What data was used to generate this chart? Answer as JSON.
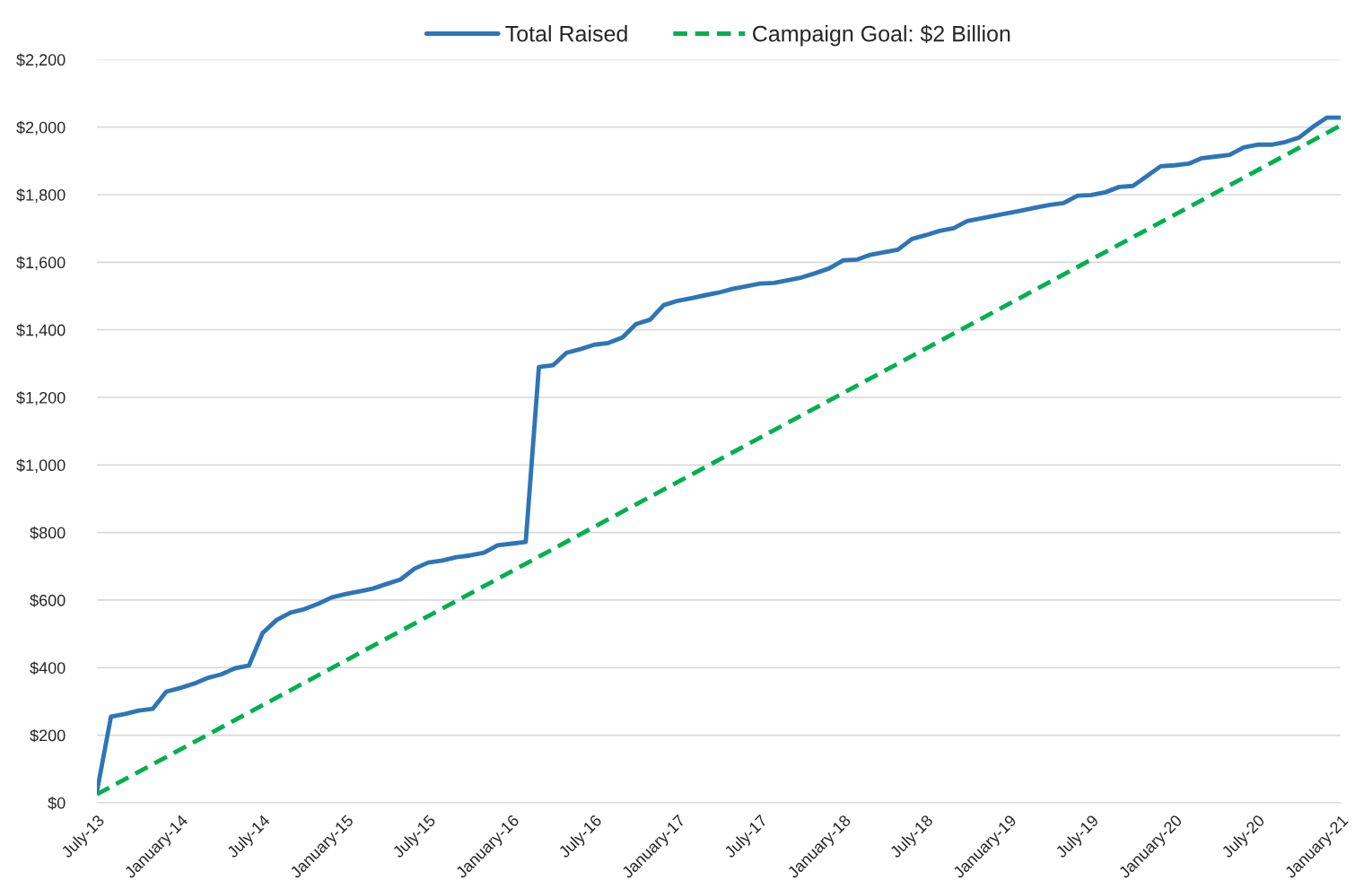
{
  "chart_data": {
    "type": "line",
    "x": [
      "2013-07",
      "2013-08",
      "2013-09",
      "2013-10",
      "2013-11",
      "2013-12",
      "2014-01",
      "2014-02",
      "2014-03",
      "2014-04",
      "2014-05",
      "2014-06",
      "2014-07",
      "2014-08",
      "2014-09",
      "2014-10",
      "2014-11",
      "2014-12",
      "2015-01",
      "2015-02",
      "2015-03",
      "2015-04",
      "2015-05",
      "2015-06",
      "2015-07",
      "2015-08",
      "2015-09",
      "2015-10",
      "2015-11",
      "2015-12",
      "2016-01",
      "2016-02",
      "2016-03",
      "2016-04",
      "2016-05",
      "2016-06",
      "2016-07",
      "2016-08",
      "2016-09",
      "2016-10",
      "2016-11",
      "2016-12",
      "2017-01",
      "2017-02",
      "2017-03",
      "2017-04",
      "2017-05",
      "2017-06",
      "2017-07",
      "2017-08",
      "2017-09",
      "2017-10",
      "2017-11",
      "2017-12",
      "2018-01",
      "2018-02",
      "2018-03",
      "2018-04",
      "2018-05",
      "2018-06",
      "2018-07",
      "2018-08",
      "2018-09",
      "2018-10",
      "2018-11",
      "2018-12",
      "2019-01",
      "2019-02",
      "2019-03",
      "2019-04",
      "2019-05",
      "2019-06",
      "2019-07",
      "2019-08",
      "2019-09",
      "2019-10",
      "2019-11",
      "2019-12",
      "2020-01",
      "2020-02",
      "2020-03",
      "2020-04",
      "2020-05",
      "2020-06",
      "2020-07",
      "2020-08",
      "2020-09",
      "2020-10",
      "2020-11",
      "2020-12",
      "2021-01"
    ],
    "series": [
      {
        "name": "Total Raised",
        "color": "#2e75b6",
        "line_style": "solid",
        "values": [
          32,
          255,
          263,
          273,
          278,
          329,
          340,
          353,
          369,
          380,
          398,
          406,
          502,
          541,
          563,
          573,
          589,
          608,
          618,
          626,
          634,
          648,
          661,
          693,
          711,
          717,
          727,
          732,
          740,
          762,
          767,
          772,
          1290,
          1295,
          1332,
          1343,
          1356,
          1361,
          1377,
          1417,
          1430,
          1473,
          1486,
          1494,
          1502,
          1510,
          1521,
          1529,
          1537,
          1539,
          1547,
          1555,
          1568,
          1582,
          1606,
          1608,
          1622,
          1630,
          1637,
          1669,
          1680,
          1693,
          1701,
          1722,
          1730,
          1738,
          1746,
          1754,
          1762,
          1770,
          1775,
          1797,
          1799,
          1807,
          1823,
          1826,
          1855,
          1884,
          1887,
          1892,
          1908,
          1913,
          1918,
          1940,
          1948,
          1948,
          1956,
          1969,
          2001,
          2028,
          2028
        ]
      },
      {
        "name": "Campaign Goal: $2 Billion",
        "color": "#00b050",
        "line_style": "dashed",
        "x": [
          "2013-07",
          "2021-01"
        ],
        "values": [
          25,
          2005
        ]
      }
    ],
    "xlim": [
      "2013-07",
      "2021-01"
    ],
    "xticks": [
      {
        "value": "2013-07",
        "label": "July-13"
      },
      {
        "value": "2014-01",
        "label": "January-14"
      },
      {
        "value": "2014-07",
        "label": "July-14"
      },
      {
        "value": "2015-01",
        "label": "January-15"
      },
      {
        "value": "2015-07",
        "label": "July-15"
      },
      {
        "value": "2016-01",
        "label": "January-16"
      },
      {
        "value": "2016-07",
        "label": "July-16"
      },
      {
        "value": "2017-01",
        "label": "January-17"
      },
      {
        "value": "2017-07",
        "label": "July-17"
      },
      {
        "value": "2018-01",
        "label": "January-18"
      },
      {
        "value": "2018-07",
        "label": "July-18"
      },
      {
        "value": "2019-01",
        "label": "January-19"
      },
      {
        "value": "2019-07",
        "label": "July-19"
      },
      {
        "value": "2020-01",
        "label": "January-20"
      },
      {
        "value": "2020-07",
        "label": "July-20"
      },
      {
        "value": "2021-01",
        "label": "January-21"
      }
    ],
    "ylim": [
      0,
      2200
    ],
    "yticks": [
      {
        "value": 0,
        "label": "$0"
      },
      {
        "value": 200,
        "label": "$200"
      },
      {
        "value": 400,
        "label": "$400"
      },
      {
        "value": 600,
        "label": "$600"
      },
      {
        "value": 800,
        "label": "$800"
      },
      {
        "value": 1000,
        "label": "$1,000"
      },
      {
        "value": 1200,
        "label": "$1,200"
      },
      {
        "value": 1400,
        "label": "$1,400"
      },
      {
        "value": 1600,
        "label": "$1,600"
      },
      {
        "value": 1800,
        "label": "$1,800"
      },
      {
        "value": 2000,
        "label": "$2,000"
      },
      {
        "value": 2200,
        "label": "$2,200"
      }
    ],
    "grid": "y",
    "legend": "top",
    "marker": "none"
  }
}
